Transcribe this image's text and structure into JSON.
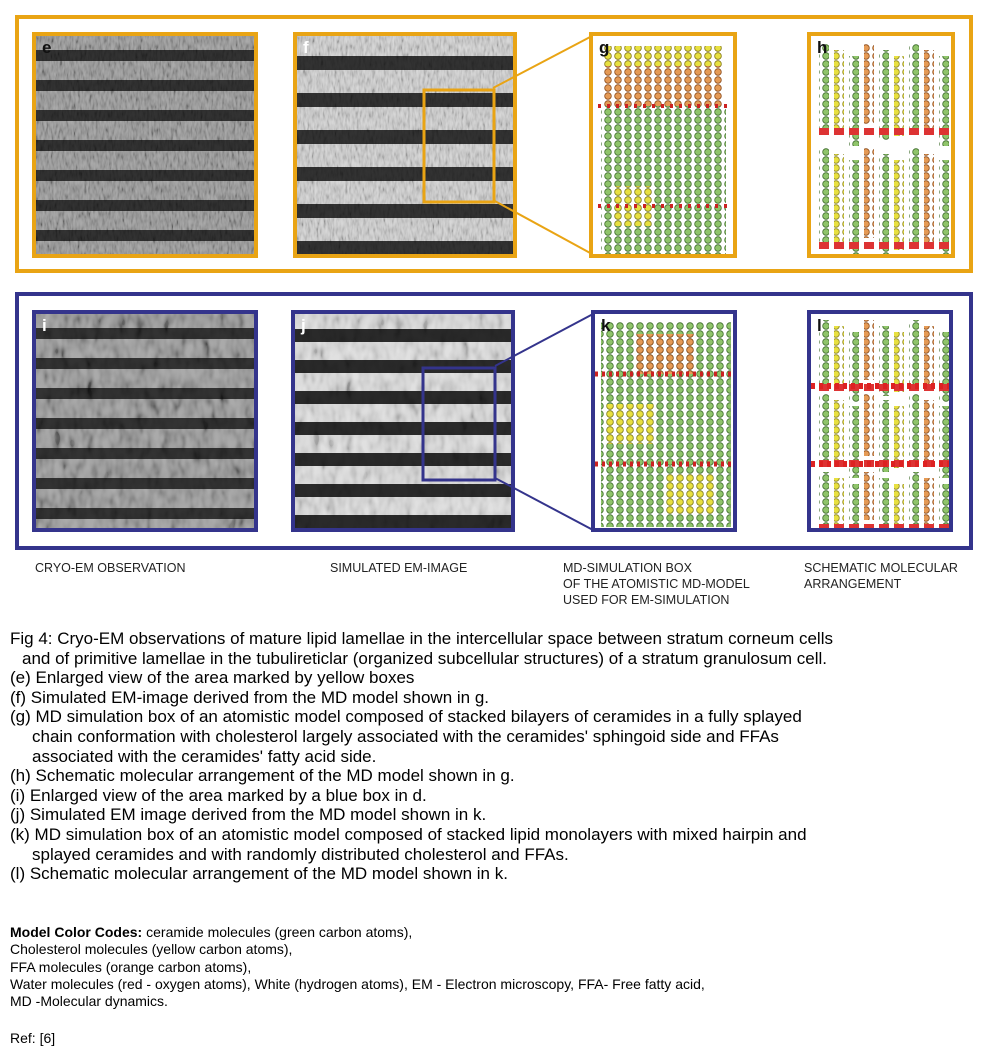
{
  "colors": {
    "top_frame": "#e9a414",
    "bottom_frame": "#34348c"
  },
  "panels": {
    "e": "e",
    "f": "f",
    "g": "g",
    "h": "h",
    "i": "i",
    "j": "j",
    "k": "k",
    "l": "l"
  },
  "column_captions": {
    "cryo": "CRYO-EM OBSERVATION",
    "simulated": "SIMULATED EM-IMAGE",
    "md_box": [
      "MD-SIMULATION BOX",
      "OF THE ATOMISTIC MD-MODEL",
      "USED FOR EM-SIMULATION"
    ],
    "schematic": [
      "SCHEMATIC MOLECULAR",
      "ARRANGEMENT"
    ]
  },
  "caption": {
    "lines": [
      "Fig 4: Cryo-EM observations of mature lipid lamellae in the intercellular space between stratum corneum cells",
      "and of primitive lamellae in the tubulireticlar (organized subcellular structures) of a stratum granulosum cell.",
      "(e) Enlarged view of the area marked by yellow boxes",
      "(f) Simulated EM-image derived from the MD model shown in g.",
      "(g) MD simulation box of an atomistic model composed of stacked bilayers of ceramides in a fully splayed",
      "chain conformation with cholesterol largely associated with the ceramides' sphingoid side and FFAs",
      "associated with the ceramides' fatty acid side.",
      "(h) Schematic molecular arrangement of the MD model shown in g.",
      "(i) Enlarged view of the area marked by a blue box in d.",
      "(j) Simulated EM image derived from the MD model shown in k.",
      "(k) MD simulation box of an atomistic model composed of stacked lipid monolayers with mixed hairpin and",
      "splayed ceramides and with randomly distributed cholesterol and FFAs.",
      "(l) Schematic molecular arrangement of the MD model shown in k."
    ]
  },
  "color_codes": {
    "heading": "Model Color Codes:",
    "lines": [
      " ceramide molecules (green carbon atoms),",
      "Cholesterol molecules (yellow carbon atoms),",
      "FFA molecules (orange carbon atoms),",
      "Water molecules (red - oxygen atoms), White (hydrogen atoms), EM - Electron microscopy, FFA- Free fatty acid,",
      "MD -Molecular dynamics."
    ]
  },
  "ref": "Ref: [6]"
}
